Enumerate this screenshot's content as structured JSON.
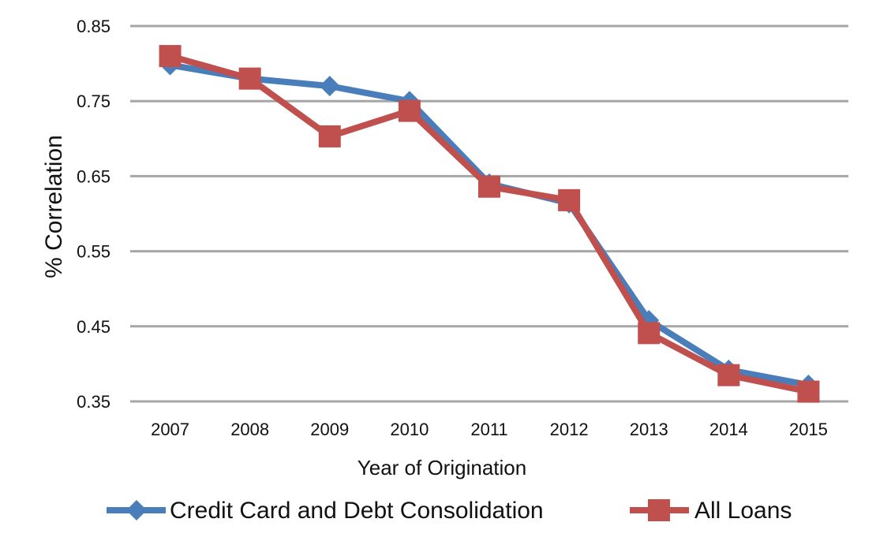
{
  "chart_data": {
    "type": "line",
    "title": "",
    "xlabel": "Year of Origination",
    "ylabel": "% Correlation",
    "categories": [
      "2007",
      "2008",
      "2009",
      "2010",
      "2011",
      "2012",
      "2013",
      "2014",
      "2015"
    ],
    "yticks": [
      "0.35",
      "0.45",
      "0.55",
      "0.65",
      "0.75",
      "0.85"
    ],
    "ylim": [
      0.35,
      0.85
    ],
    "grid": true,
    "legend_position": "bottom",
    "series": [
      {
        "name": "Credit Card and Debt Consolidation",
        "values": [
          0.798,
          0.78,
          0.77,
          0.75,
          0.64,
          0.614,
          0.458,
          0.392,
          0.372
        ],
        "color": "#4a7ebb",
        "marker": "diamond"
      },
      {
        "name": "All Loans",
        "values": [
          0.81,
          0.78,
          0.703,
          0.737,
          0.636,
          0.618,
          0.441,
          0.385,
          0.363
        ],
        "color": "#c0504d",
        "marker": "square"
      }
    ]
  }
}
